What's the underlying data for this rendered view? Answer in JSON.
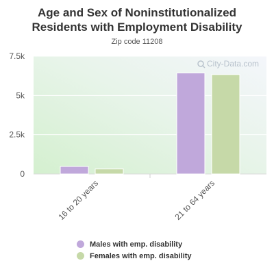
{
  "chart_data": {
    "type": "bar",
    "title": "Age and Sex of Noninstitutionalized Residents with Employment Disability",
    "subtitle": "Zip code 11208",
    "categories": [
      "16 to 20 years",
      "21 to 64 years"
    ],
    "series": [
      {
        "name": "Males with emp. disability",
        "color": "#c0a8db",
        "values": [
          480,
          6430
        ]
      },
      {
        "name": "Females with emp. disability",
        "color": "#c6d9a8",
        "values": [
          320,
          6330
        ]
      }
    ],
    "ylim": [
      0,
      7500
    ],
    "yticks": [
      0,
      2500,
      5000,
      7500
    ],
    "ytick_labels": [
      "0",
      "2.5k",
      "5k",
      "7.5k"
    ],
    "xlabel": "",
    "ylabel": "",
    "grid": true,
    "legend_position": "bottom"
  },
  "watermark": {
    "text": "City-Data.com",
    "icon": "magnifier-icon"
  }
}
